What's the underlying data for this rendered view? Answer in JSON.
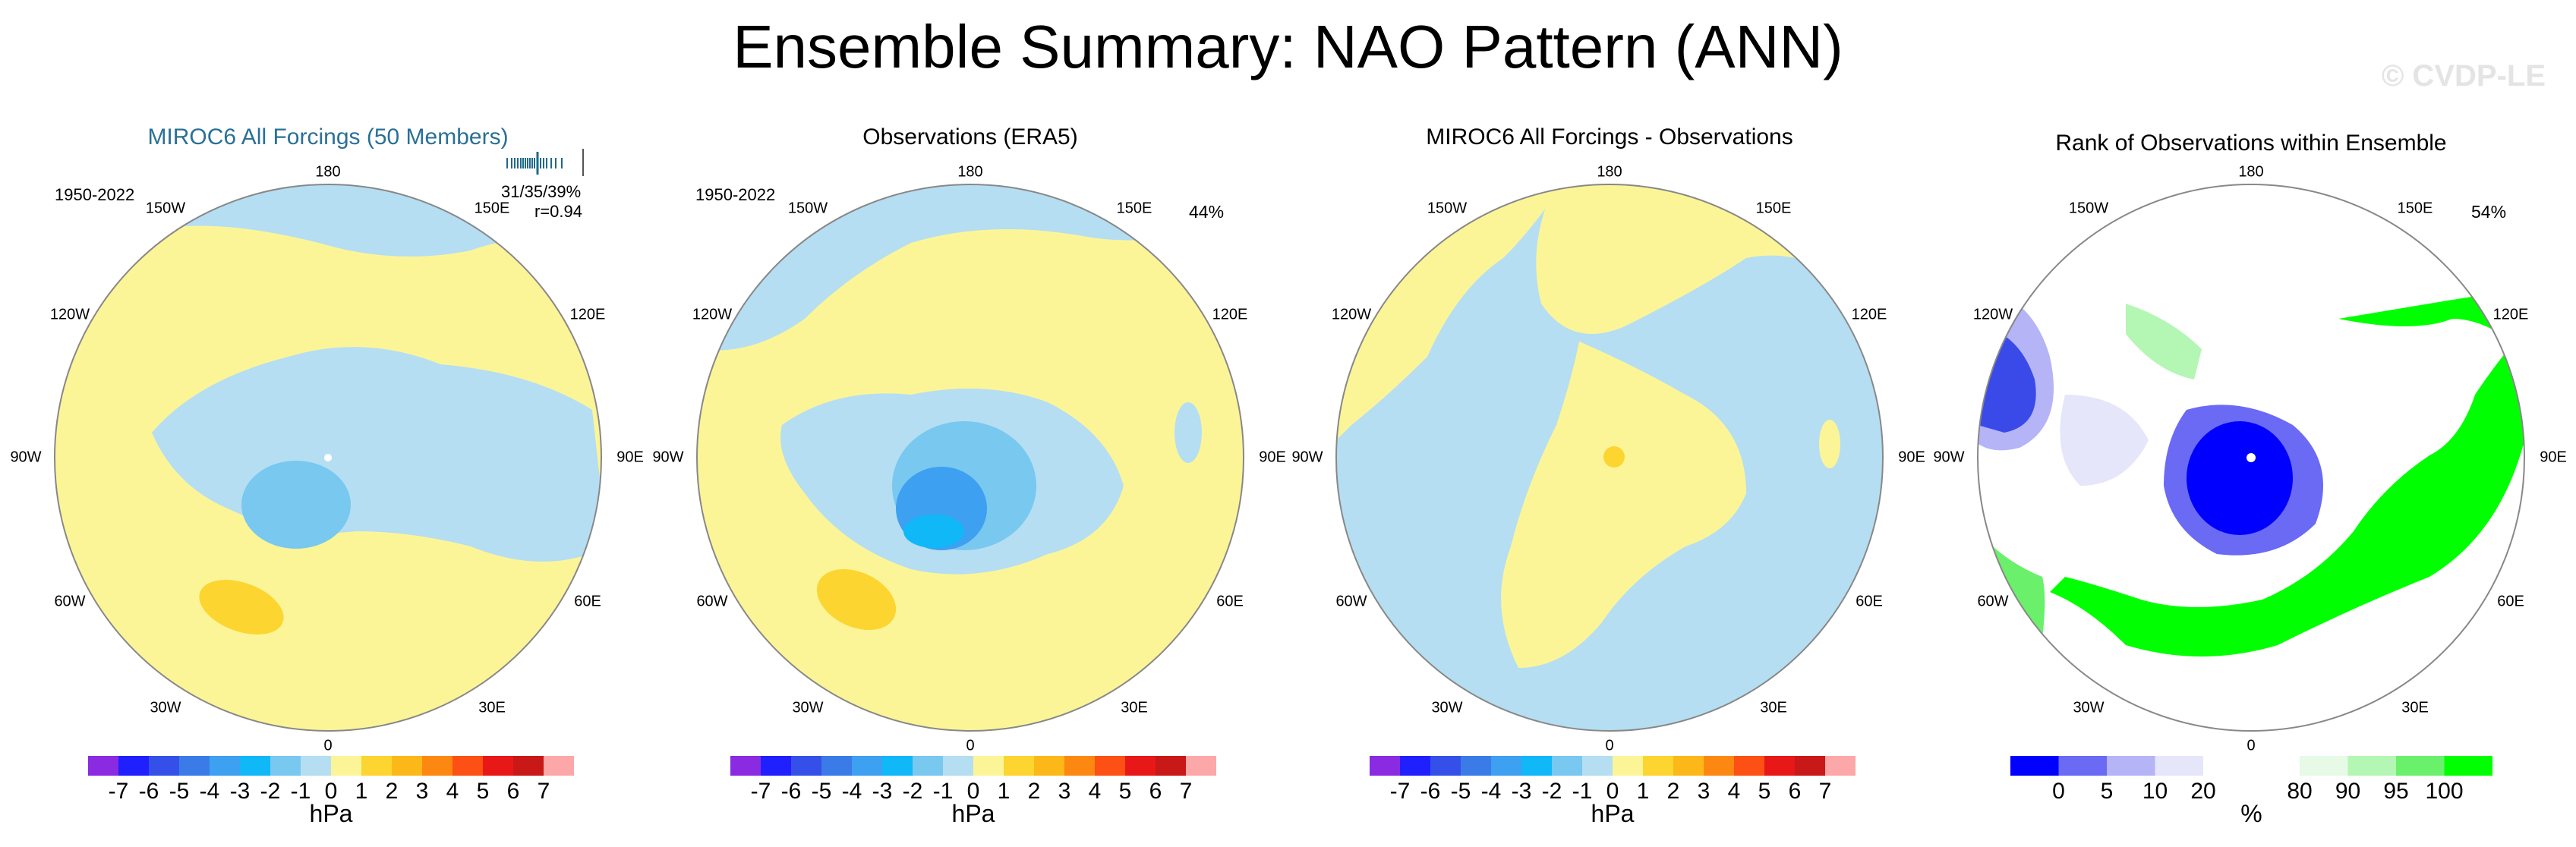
{
  "title": "Ensemble Summary: NAO Pattern (ANN)",
  "watermark": "© CVDP-LE",
  "panels": [
    {
      "title": "MIROC6 All Forcings (50 Members)",
      "period": "1950-2022",
      "stats_line1": "31/35/39%",
      "stats_line2": "r=0.94"
    },
    {
      "title": "Observations (ERA5)",
      "period": "1950-2022",
      "percent": "44%"
    },
    {
      "title": "MIROC6 All Forcings - Observations"
    },
    {
      "title": "Rank of Observations within Ensemble",
      "percent": "54%"
    }
  ],
  "longitudes": {
    "top": "180",
    "bottom": "0",
    "left": "90W",
    "right": "90E",
    "ul": "150W",
    "ur": "150E",
    "ul2": "120W",
    "ur2": "120E",
    "ll": "60W",
    "lr": "60E",
    "ll2": "30W",
    "lr2": "30E"
  },
  "hpa_colorbar": {
    "colors": [
      "#8a2be2",
      "#2020ff",
      "#3550e8",
      "#3a7be8",
      "#3da0f0",
      "#10b8f8",
      "#78c8f0",
      "#b5def2",
      "#fcf598",
      "#fcd530",
      "#fcb818",
      "#fc8812",
      "#fc5014",
      "#e81818",
      "#c81818",
      "#fca8a8"
    ],
    "labels": [
      "-7",
      "-6",
      "-5",
      "-4",
      "-3",
      "-2",
      "-1",
      "0",
      "1",
      "2",
      "3",
      "4",
      "5",
      "6",
      "7"
    ],
    "unit": "hPa"
  },
  "rank_colorbar": {
    "colors": [
      "#0000ff",
      "#6a6af5",
      "#b4b4f6",
      "#e6e6fa",
      "#ffffff",
      "#ffffff",
      "#e6fae6",
      "#b4f6b4",
      "#6af06a",
      "#00ff00"
    ],
    "labels": [
      "0",
      "5",
      "10",
      "20",
      "80",
      "90",
      "95",
      "100"
    ],
    "unit": "%"
  }
}
